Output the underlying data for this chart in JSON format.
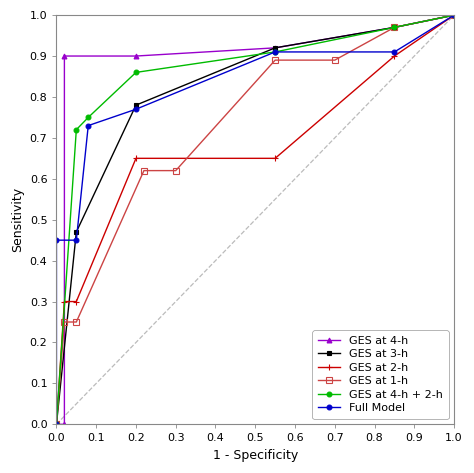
{
  "title": "",
  "xlabel": "1 - Specificity",
  "ylabel": "Sensitivity",
  "xlim": [
    0,
    1
  ],
  "ylim": [
    0,
    1
  ],
  "xticks": [
    0.0,
    0.1,
    0.2,
    0.3,
    0.4,
    0.5,
    0.6,
    0.7,
    0.8,
    0.9,
    1.0
  ],
  "yticks": [
    0.0,
    0.1,
    0.2,
    0.3,
    0.4,
    0.5,
    0.6,
    0.7,
    0.8,
    0.9,
    1.0
  ],
  "diagonal": {
    "x": [
      0,
      1
    ],
    "y": [
      0,
      1
    ],
    "color": "#bbbbbb",
    "linestyle": "dashed"
  },
  "series": [
    {
      "label": "GES at 4-h",
      "color": "#9900cc",
      "marker": "^",
      "markersize": 3.5,
      "markerfacecolor": "#9900cc",
      "x": [
        0.0,
        0.02,
        0.02,
        0.2,
        0.55,
        0.85,
        1.0
      ],
      "y": [
        0.0,
        0.0,
        0.9,
        0.9,
        0.92,
        0.97,
        1.0
      ]
    },
    {
      "label": "GES at 3-h",
      "color": "#000000",
      "marker": "s",
      "markersize": 3.5,
      "markerfacecolor": "#000000",
      "x": [
        0.0,
        0.0,
        0.05,
        0.2,
        0.55,
        0.85,
        1.0
      ],
      "y": [
        0.0,
        0.0,
        0.47,
        0.78,
        0.92,
        0.97,
        1.0
      ]
    },
    {
      "label": "GES at 2-h",
      "color": "#cc0000",
      "marker": "+",
      "markersize": 5,
      "markerfacecolor": "#cc0000",
      "x": [
        0.0,
        0.02,
        0.05,
        0.2,
        0.55,
        0.85,
        1.0
      ],
      "y": [
        0.0,
        0.3,
        0.3,
        0.65,
        0.65,
        0.9,
        1.0
      ]
    },
    {
      "label": "GES at 1-h",
      "color": "#cc4444",
      "marker": "s",
      "markersize": 4,
      "markerfacecolor": "none",
      "x": [
        0.0,
        0.02,
        0.05,
        0.22,
        0.3,
        0.55,
        0.7,
        0.85,
        1.0
      ],
      "y": [
        0.0,
        0.25,
        0.25,
        0.62,
        0.62,
        0.89,
        0.89,
        0.97,
        1.0
      ]
    },
    {
      "label": "GES at 4-h + 2-h",
      "color": "#00bb00",
      "marker": "o",
      "markersize": 3.5,
      "markerfacecolor": "#00bb00",
      "x": [
        0.0,
        0.0,
        0.05,
        0.08,
        0.2,
        0.55,
        0.85,
        1.0
      ],
      "y": [
        0.0,
        0.0,
        0.72,
        0.75,
        0.86,
        0.91,
        0.97,
        1.0
      ]
    },
    {
      "label": "Full Model",
      "color": "#0000cc",
      "marker": "o",
      "markersize": 3.5,
      "markerfacecolor": "#0000cc",
      "x": [
        0.0,
        0.0,
        0.05,
        0.08,
        0.2,
        0.55,
        0.85,
        1.0
      ],
      "y": [
        0.0,
        0.45,
        0.45,
        0.73,
        0.77,
        0.91,
        0.91,
        1.0
      ]
    }
  ],
  "legend_loc": "lower right",
  "background_color": "#ffffff",
  "font_size": 9,
  "tick_fontsize": 8
}
